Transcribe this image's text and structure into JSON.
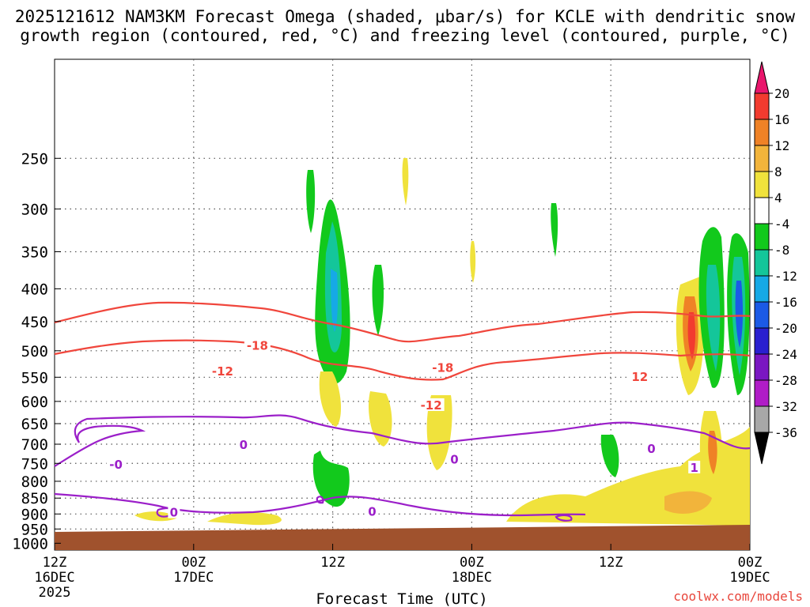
{
  "chart_data": {
    "type": "heatmap",
    "title_line1": "2025121612 NAM3KM Forecast Omega (shaded, μbar/s) for KCLE with dendritic snow",
    "title_line2": "growth region (contoured, red, °C) and freezing level (contoured, purple, °C)",
    "xlabel": "Forecast Time (UTC)",
    "ylabel": "",
    "credit": "coolwx.com/models",
    "x_range_hours": [
      0,
      60
    ],
    "x_ticks": [
      {
        "hour": 0,
        "l1": "12Z",
        "l2": "16DEC",
        "l3": "2025"
      },
      {
        "hour": 12,
        "l1": "00Z",
        "l2": "17DEC",
        "l3": ""
      },
      {
        "hour": 24,
        "l1": "12Z",
        "l2": "",
        "l3": ""
      },
      {
        "hour": 36,
        "l1": "00Z",
        "l2": "18DEC",
        "l3": ""
      },
      {
        "hour": 48,
        "l1": "12Z",
        "l2": "",
        "l3": ""
      },
      {
        "hour": 60,
        "l1": "00Z",
        "l2": "19DEC",
        "l3": ""
      }
    ],
    "y_range_hPa": [
      1025,
      175
    ],
    "y_ticks": [
      250,
      300,
      350,
      400,
      450,
      500,
      550,
      600,
      650,
      700,
      750,
      800,
      850,
      900,
      950,
      1000
    ],
    "colorbar": {
      "labels": [
        "20",
        "16",
        "12",
        "8",
        "4",
        "-4",
        "-8",
        "-12",
        "-16",
        "-20",
        "-24",
        "-28",
        "-32",
        "-36"
      ],
      "colors": [
        "#e9166c",
        "#f23b2f",
        "#ef8226",
        "#f2b43b",
        "#f0e23c",
        "#ffffff",
        "#12c91c",
        "#14c69a",
        "#16a9e6",
        "#1b5ae6",
        "#2a1fd0",
        "#7a17c2",
        "#b01cc7",
        "#a8a8a8",
        "#000000"
      ]
    },
    "contours": {
      "dgz_labels": [
        {
          "value": "-18",
          "hour": 17.5,
          "p": 490
        },
        {
          "value": "-12",
          "hour": 14.5,
          "p": 537
        },
        {
          "value": "-18",
          "hour": 33.5,
          "p": 530
        },
        {
          "value": "-12",
          "hour": 32.5,
          "p": 607
        },
        {
          "value": "12",
          "hour": 50.5,
          "p": 548
        }
      ],
      "freezing_labels": [
        {
          "value": "0",
          "hour": 16.3,
          "p": 700
        },
        {
          "value": "-0",
          "hour": 5.3,
          "p": 752
        },
        {
          "value": "0",
          "hour": 10.3,
          "p": 893
        },
        {
          "value": "0",
          "hour": 27.4,
          "p": 890
        },
        {
          "value": "0",
          "hour": 34.5,
          "p": 738
        },
        {
          "value": "0",
          "hour": 51.5,
          "p": 710
        },
        {
          "value": "1",
          "hour": 55.2,
          "p": 760
        }
      ]
    },
    "colors": {
      "dgz_contour": "#f0463c",
      "freezing_contour": "#9b1fc9",
      "terrain": "#a0522d",
      "grid": "#555555"
    }
  }
}
